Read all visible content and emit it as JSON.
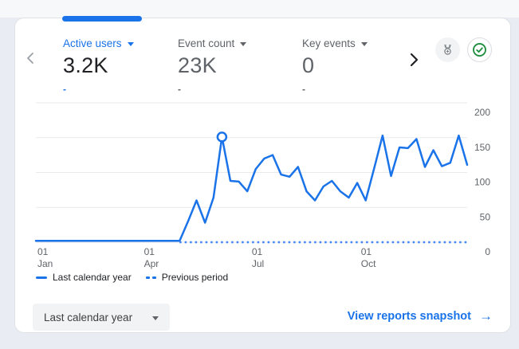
{
  "colors": {
    "accent_blue": "#1a73e8",
    "dark_text": "#202124",
    "gray_text": "#5f6368",
    "grid": "#e8eaed",
    "green": "#1e8e3e",
    "card_border": "#dfe1e5",
    "chip_bg": "#f1f3f4"
  },
  "metrics": {
    "items": [
      {
        "label": "Active users",
        "value": "3.2K",
        "change": "-"
      },
      {
        "label": "Event count",
        "value": "23K",
        "change": "-"
      },
      {
        "label": "Key events",
        "value": "0",
        "change": "-"
      }
    ]
  },
  "icons": {
    "prev": "chevron-left",
    "next": "chevron-right",
    "medal": "medal-badge",
    "check": "check-circle"
  },
  "chart_data": {
    "type": "line",
    "title": "",
    "xlabel": "",
    "ylabel": "",
    "grid": true,
    "y_axis": {
      "side": "right",
      "ylim": [
        0,
        200
      ],
      "ticks": [
        0,
        50,
        100,
        150,
        200
      ]
    },
    "x_axis": {
      "ticks": [
        {
          "pos": 0.0,
          "day": "01",
          "month": "Jan"
        },
        {
          "pos": 0.247,
          "day": "01",
          "month": "Apr"
        },
        {
          "pos": 0.497,
          "day": "01",
          "month": "Jul"
        },
        {
          "pos": 0.75,
          "day": "01",
          "month": "Oct"
        }
      ]
    },
    "series": [
      {
        "name": "Last calendar year",
        "style": "solid",
        "color": "#1a73e8",
        "values": [
          2,
          2,
          2,
          2,
          2,
          2,
          2,
          2,
          2,
          2,
          2,
          2,
          2,
          2,
          2,
          2,
          2,
          2,
          30,
          60,
          28,
          64,
          151,
          88,
          87,
          73,
          105,
          120,
          125,
          97,
          94,
          108,
          73,
          60,
          80,
          88,
          73,
          64,
          85,
          60,
          106,
          153,
          95,
          136,
          135,
          148,
          108,
          132,
          109,
          114,
          153,
          111
        ]
      },
      {
        "name": "Previous period",
        "style": "dashed",
        "color": "#4285f4",
        "value": 0,
        "start_fraction": 0.333
      }
    ],
    "marker": {
      "index": 22,
      "value": 151
    },
    "legend_position": "bottom-left"
  },
  "legend": {
    "items": [
      {
        "label": "Last calendar year",
        "style": "solid"
      },
      {
        "label": "Previous period",
        "style": "dashed"
      }
    ]
  },
  "footer": {
    "date_range": "Last calendar year",
    "link_label": "View reports snapshot",
    "link_arrow": "→"
  }
}
